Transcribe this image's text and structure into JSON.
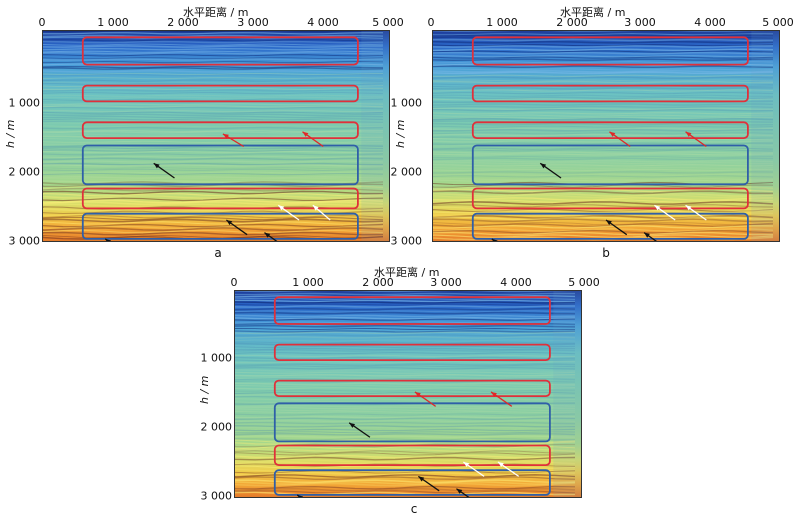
{
  "figure": {
    "x_axis_title": "水平距离 / m",
    "y_axis_title": "h / m",
    "x_ticks": [
      "0",
      "1 000",
      "2 000",
      "3 000",
      "4 000",
      "5 000"
    ],
    "y_ticks": [
      "1 000",
      "2 000",
      "3 000"
    ],
    "panels": [
      {
        "id": "a",
        "label": "a"
      },
      {
        "id": "b",
        "label": "b"
      },
      {
        "id": "c",
        "label": "c"
      }
    ],
    "box_colors": {
      "red": "#e0303a",
      "blue": "#2f5fa8"
    },
    "arrow_colors": {
      "red": "#e02828",
      "black": "#111111",
      "white": "#ffffff"
    }
  }
}
